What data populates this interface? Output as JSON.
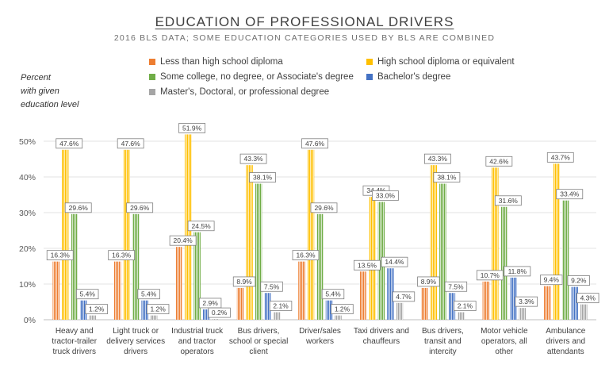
{
  "header": {
    "title": "EDUCATION OF PROFESSIONAL DRIVERS",
    "subtitle": "2016 BLS DATA; SOME EDUCATION CATEGORIES USED BY BLS ARE COMBINED",
    "ylabel_lines": [
      "Percent",
      "with given",
      "education level"
    ]
  },
  "chart_data": {
    "type": "bar",
    "title": "EDUCATION OF PROFESSIONAL DRIVERS",
    "subtitle": "2016 BLS DATA; SOME EDUCATION CATEGORIES USED BY BLS ARE COMBINED",
    "ylabel": "Percent with given education level",
    "ylim": [
      0,
      50
    ],
    "yticks": [
      "0%",
      "10%",
      "20%",
      "30%",
      "40%",
      "50%"
    ],
    "grid": true,
    "legend_position": "top",
    "categories": [
      [
        "Heavy and",
        "tractor-trailer",
        "truck drivers"
      ],
      [
        "Light truck or",
        "delivery services",
        "drivers"
      ],
      [
        "Industrial truck",
        "and tractor",
        "operators"
      ],
      [
        "Bus drivers,",
        "school or special",
        "client"
      ],
      [
        "Driver/sales",
        "workers"
      ],
      [
        "Taxi drivers and",
        "chauffeurs"
      ],
      [
        "Bus drivers,",
        "transit and",
        "intercity"
      ],
      [
        "Motor vehicle",
        "operators, all",
        "other"
      ],
      [
        "Ambulance",
        "drivers and",
        "attendants"
      ]
    ],
    "series": [
      {
        "name": "Less than high school diploma",
        "color": "#ED7D31",
        "values": [
          16.3,
          16.3,
          20.4,
          8.9,
          16.3,
          13.5,
          8.9,
          10.7,
          9.4
        ]
      },
      {
        "name": "High school diploma or equivalent",
        "color": "#FFC000",
        "values": [
          47.6,
          47.6,
          51.9,
          43.3,
          47.6,
          34.4,
          43.3,
          42.6,
          43.7
        ]
      },
      {
        "name": "Some college, no degree, or Associate's degree",
        "color": "#70AD47",
        "values": [
          29.6,
          29.6,
          24.5,
          38.1,
          29.6,
          33.0,
          38.1,
          31.6,
          33.4
        ]
      },
      {
        "name": "Bachelor's degree",
        "color": "#4472C4",
        "values": [
          5.4,
          5.4,
          2.9,
          7.5,
          5.4,
          14.4,
          7.5,
          11.8,
          9.2
        ]
      },
      {
        "name": "Master's, Doctoral, or professional degree",
        "color": "#A5A5A5",
        "values": [
          1.2,
          1.2,
          0.2,
          2.1,
          1.2,
          4.7,
          2.1,
          3.3,
          4.3
        ]
      }
    ]
  }
}
